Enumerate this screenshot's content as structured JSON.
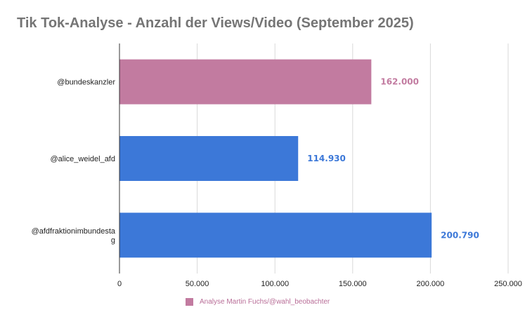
{
  "chart_data": {
    "type": "bar",
    "orientation": "horizontal",
    "title": "Tik Tok-Analyse - Anzahl der Views/Video (September 2025)",
    "categories": [
      "@bundeskanzler",
      "@alice_weidel_afd",
      "@afdfraktionimbundestag"
    ],
    "category_labels": [
      [
        "@bundeskanzler"
      ],
      [
        "@alice_weidel_afd"
      ],
      [
        "@afdfraktionimbundesta",
        "g"
      ]
    ],
    "values": [
      162000,
      114930,
      200790
    ],
    "value_labels": [
      "162.000",
      "114.930",
      "200.790"
    ],
    "bar_colors": [
      "#c27ba0",
      "#3c78d8",
      "#3c78d8"
    ],
    "label_colors": [
      "#c27ba0",
      "#3c78d8",
      "#3c78d8"
    ],
    "xlim": [
      0,
      250000
    ],
    "x_ticks": [
      0,
      50000,
      100000,
      150000,
      200000,
      250000
    ],
    "x_tick_labels": [
      "0",
      "50.000",
      "100.000",
      "150.000",
      "200.000",
      "250.000"
    ],
    "grid": true,
    "legend": {
      "position": "bottom",
      "entries": [
        {
          "label": "Analyse Martin Fuchs/@wahl_beobachter",
          "color": "#c27ba0"
        }
      ]
    }
  }
}
